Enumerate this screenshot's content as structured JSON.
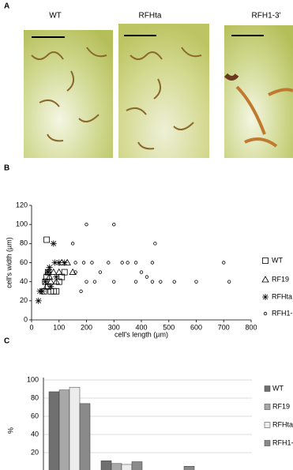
{
  "panels": {
    "a": {
      "label": "A",
      "images": [
        "WT",
        "RFHta",
        "RFH1-3'"
      ]
    },
    "b": {
      "label": "B"
    },
    "c": {
      "label": "C"
    }
  },
  "chart_data": [
    {
      "type": "scatter",
      "xlabel": "cell's length (µm)",
      "ylabel": "cell's width (µm)",
      "xlim": [
        0,
        800
      ],
      "xticks": [
        0,
        100,
        200,
        300,
        400,
        500,
        600,
        700,
        800
      ],
      "ylim": [
        0,
        120
      ],
      "yticks": [
        0,
        20,
        40,
        60,
        80,
        100,
        120
      ],
      "series": [
        {
          "name": "WT",
          "marker": "square",
          "color": "#000000",
          "x": [
            55,
            50,
            60,
            70,
            80,
            100,
            120,
            90,
            60,
            45,
            110,
            55
          ],
          "y": [
            84,
            40,
            35,
            30,
            30,
            40,
            50,
            30,
            50,
            30,
            45,
            45
          ]
        },
        {
          "name": "RF19",
          "marker": "triangle",
          "color": "#000000",
          "x": [
            60,
            80,
            100,
            130,
            150,
            70,
            90,
            110,
            55,
            65
          ],
          "y": [
            50,
            50,
            50,
            60,
            50,
            40,
            40,
            60,
            35,
            45
          ]
        },
        {
          "name": "RFHta",
          "marker": "asterisk",
          "color": "#000000",
          "x": [
            25,
            80,
            85,
            100,
            120,
            60,
            50,
            40,
            70,
            30,
            90,
            65
          ],
          "y": [
            20,
            80,
            60,
            60,
            60,
            50,
            40,
            30,
            35,
            30,
            45,
            55
          ]
        },
        {
          "name": "RFH1-",
          "marker": "circle",
          "color": "#000000",
          "x": [
            200,
            300,
            150,
            160,
            190,
            220,
            280,
            330,
            350,
            380,
            440,
            450,
            400,
            420,
            380,
            440,
            470,
            520,
            600,
            700,
            720,
            250,
            300,
            180,
            200,
            160,
            230
          ],
          "y": [
            100,
            100,
            80,
            60,
            60,
            60,
            60,
            60,
            60,
            60,
            60,
            80,
            50,
            45,
            40,
            40,
            40,
            40,
            40,
            60,
            40,
            50,
            40,
            30,
            40,
            50,
            40
          ]
        }
      ]
    },
    {
      "type": "bar",
      "ylabel": "%",
      "categories": [
        null,
        null,
        null
      ],
      "ylim": [
        0,
        100
      ],
      "yticks": [
        20,
        40,
        60,
        80,
        100
      ],
      "grid": true,
      "series": [
        {
          "name": "WT",
          "color": "#707070",
          "values": [
            87,
            11,
            0
          ]
        },
        {
          "name": "RF19",
          "color": "#a8a8a8",
          "values": [
            89,
            8,
            0
          ]
        },
        {
          "name": "RFHta",
          "color": "#ececec",
          "values": [
            92,
            7,
            0
          ]
        },
        {
          "name": "RFH1-",
          "color": "#8a8a8a",
          "values": [
            74,
            10,
            5
          ]
        }
      ]
    }
  ]
}
